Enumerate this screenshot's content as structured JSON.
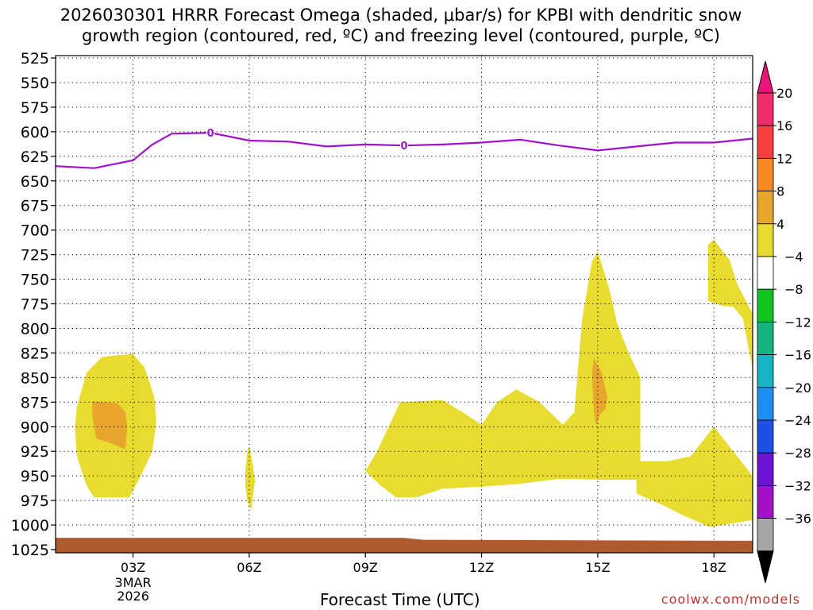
{
  "title_line1": "2026030301 HRRR Forecast Omega (shaded, μbar/s) for KPBI with dendritic snow",
  "title_line2": "growth region (contoured, red, ºC) and freezing level (contoured, purple, ºC)",
  "watermark": "coolwx.com/models",
  "chart_data": {
    "type": "contour",
    "title": "2026030301 HRRR Forecast Omega (shaded, μbar/s) for KPBI with dendritic snow growth region (contoured, red, ºC) and freezing level (contoured, purple, ºC)",
    "xlabel": "Forecast Time (UTC)",
    "ylabel": "",
    "xlim": [
      1,
      19
    ],
    "ylim": [
      1025,
      525
    ],
    "y_scale": "pressure (inverted)",
    "grid": true,
    "y_ticks": [
      525,
      550,
      575,
      600,
      625,
      650,
      675,
      700,
      725,
      750,
      775,
      800,
      825,
      850,
      875,
      900,
      925,
      950,
      975,
      1000,
      1025
    ],
    "x_ticks": [
      {
        "hour": 3,
        "label": "03Z",
        "sub1": "3MAR",
        "sub2": "2026"
      },
      {
        "hour": 6,
        "label": "06Z"
      },
      {
        "hour": 9,
        "label": "09Z"
      },
      {
        "hour": 12,
        "label": "12Z"
      },
      {
        "hour": 15,
        "label": "15Z"
      },
      {
        "hour": 18,
        "label": "18Z"
      }
    ],
    "colorbar": {
      "labels": [
        "20",
        "16",
        "12",
        "8",
        "4",
        "-4",
        "-8",
        "-12",
        "-16",
        "-20",
        "-24",
        "-28",
        "-32",
        "-36"
      ],
      "segments": [
        "#ef2c6a",
        "#f53e3e",
        "#f58a24",
        "#e8a62e",
        "#e8dc30",
        "#ffffff",
        "#11c421",
        "#16b27f",
        "#18b3c4",
        "#1e8ff0",
        "#1f4fe6",
        "#6a14d4",
        "#a312c6",
        "#a6a6a6"
      ],
      "top_arrow_color": "#e8167a",
      "bottom_arrow_color": "#000000"
    },
    "freezing_level": {
      "label": "0",
      "color": "#a20fd1",
      "label_points": [
        [
          5.0,
          601
        ],
        [
          10.0,
          614
        ]
      ],
      "points": [
        [
          1.0,
          635
        ],
        [
          2.0,
          637
        ],
        [
          3.0,
          629
        ],
        [
          3.5,
          613
        ],
        [
          4.0,
          602
        ],
        [
          5.0,
          601
        ],
        [
          6.0,
          609
        ],
        [
          7.0,
          610
        ],
        [
          8.0,
          615
        ],
        [
          9.0,
          613
        ],
        [
          10.0,
          614
        ],
        [
          11.0,
          613
        ],
        [
          12.0,
          611
        ],
        [
          13.0,
          608
        ],
        [
          14.0,
          614
        ],
        [
          15.0,
          619
        ],
        [
          16.0,
          615
        ],
        [
          17.0,
          611
        ],
        [
          18.0,
          611
        ],
        [
          19.0,
          607
        ]
      ]
    },
    "omega_regions": [
      {
        "level": "4-8",
        "color": "#e8dc30",
        "points": [
          [
            1.5,
            900
          ],
          [
            1.55,
            880
          ],
          [
            1.8,
            845
          ],
          [
            2.2,
            829
          ],
          [
            2.7,
            827
          ],
          [
            3.0,
            826
          ],
          [
            3.3,
            840
          ],
          [
            3.55,
            870
          ],
          [
            3.6,
            895
          ],
          [
            3.5,
            925
          ],
          [
            3.2,
            950
          ],
          [
            2.9,
            972
          ],
          [
            2.0,
            972
          ],
          [
            1.8,
            960
          ],
          [
            1.55,
            930
          ]
        ]
      },
      {
        "level": "8-12",
        "color": "#e8a62e",
        "points": [
          [
            1.95,
            874
          ],
          [
            2.6,
            876
          ],
          [
            2.8,
            885
          ],
          [
            2.85,
            900
          ],
          [
            2.8,
            923
          ],
          [
            2.5,
            918
          ],
          [
            2.05,
            912
          ],
          [
            1.95,
            890
          ]
        ]
      },
      {
        "level": "4-8",
        "color": "#e8dc30",
        "points": [
          [
            5.9,
            945
          ],
          [
            5.95,
            925
          ],
          [
            6.0,
            920
          ],
          [
            6.1,
            940
          ],
          [
            6.15,
            955
          ],
          [
            6.05,
            985
          ],
          [
            5.95,
            975
          ],
          [
            5.9,
            960
          ]
        ]
      },
      {
        "level": "4-8",
        "color": "#e8dc30",
        "points": [
          [
            9.0,
            945
          ],
          [
            9.3,
            925
          ],
          [
            9.6,
            900
          ],
          [
            9.9,
            875
          ],
          [
            11.0,
            873
          ],
          [
            11.5,
            885
          ],
          [
            12.0,
            898
          ],
          [
            12.4,
            875
          ],
          [
            12.9,
            862
          ],
          [
            13.5,
            875
          ],
          [
            14.1,
            898
          ],
          [
            14.4,
            885
          ],
          [
            14.5,
            835
          ],
          [
            14.6,
            790
          ],
          [
            14.85,
            732
          ],
          [
            15.0,
            722
          ],
          [
            15.3,
            760
          ],
          [
            15.5,
            795
          ],
          [
            15.8,
            825
          ],
          [
            16.1,
            850
          ],
          [
            16.1,
            935
          ],
          [
            16.8,
            935
          ],
          [
            17.4,
            930
          ],
          [
            18.0,
            900
          ],
          [
            18.4,
            920
          ],
          [
            18.9,
            945
          ],
          [
            19.0,
            951
          ],
          [
            19.0,
            995
          ],
          [
            18.5,
            998
          ],
          [
            17.9,
            1002
          ],
          [
            17.2,
            990
          ],
          [
            16.7,
            980
          ],
          [
            16.0,
            968
          ],
          [
            16.0,
            954
          ],
          [
            15.2,
            954
          ],
          [
            14.0,
            953
          ],
          [
            13.0,
            958
          ],
          [
            12.0,
            961
          ],
          [
            11.0,
            963
          ],
          [
            10.3,
            972
          ],
          [
            9.8,
            972
          ],
          [
            9.4,
            960
          ]
        ]
      },
      {
        "level": "8-12",
        "color": "#e8a62e",
        "points": [
          [
            14.9,
            830
          ],
          [
            15.1,
            845
          ],
          [
            15.25,
            870
          ],
          [
            15.2,
            882
          ],
          [
            15.05,
            888
          ],
          [
            15.0,
            895
          ],
          [
            14.95,
            898
          ],
          [
            14.9,
            885
          ],
          [
            14.85,
            845
          ]
        ]
      },
      {
        "level": "4-8",
        "color": "#e8dc30",
        "points": [
          [
            17.85,
            715
          ],
          [
            18.0,
            710
          ],
          [
            18.4,
            730
          ],
          [
            18.6,
            755
          ],
          [
            19.0,
            785
          ],
          [
            19.0,
            840
          ],
          [
            18.9,
            822
          ],
          [
            18.75,
            790
          ],
          [
            18.5,
            778
          ],
          [
            18.2,
            777
          ],
          [
            17.85,
            772
          ]
        ]
      }
    ],
    "ground": {
      "color": "#b05a30",
      "points": [
        [
          1.0,
          1013
        ],
        [
          10.0,
          1013
        ],
        [
          10.5,
          1015
        ],
        [
          19.0,
          1016
        ],
        [
          19.0,
          1030
        ],
        [
          1.0,
          1030
        ]
      ]
    }
  }
}
